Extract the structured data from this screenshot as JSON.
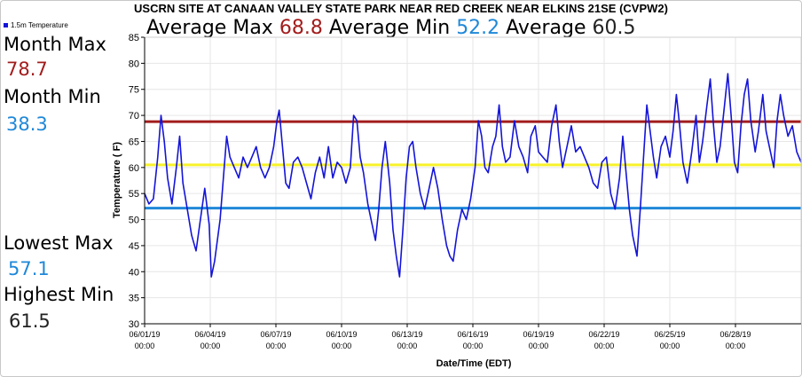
{
  "chart_data": {
    "type": "line",
    "title": "USCRN SITE AT CANAAN VALLEY STATE PARK NEAR RED CREEK NEAR ELKINS 21SE (CVPW2)",
    "xlabel": "Date/Time (EDT)",
    "ylabel": "Temperature ( F)",
    "ylim": [
      30,
      85
    ],
    "yticks": [
      30,
      35,
      40,
      45,
      50,
      55,
      60,
      65,
      70,
      75,
      80,
      85
    ],
    "xlim_days": [
      0,
      30
    ],
    "xtick_labels": [
      {
        "day": 0,
        "date": "06/01/19",
        "time": "00:00"
      },
      {
        "day": 3,
        "date": "06/04/19",
        "time": "00:00"
      },
      {
        "day": 6,
        "date": "06/07/19",
        "time": "00:00"
      },
      {
        "day": 9,
        "date": "06/10/19",
        "time": "00:00"
      },
      {
        "day": 12,
        "date": "06/13/19",
        "time": "00:00"
      },
      {
        "day": 15,
        "date": "06/16/19",
        "time": "00:00"
      },
      {
        "day": 18,
        "date": "06/19/19",
        "time": "00:00"
      },
      {
        "day": 21,
        "date": "06/22/19",
        "time": "00:00"
      },
      {
        "day": 24,
        "date": "06/25/19",
        "time": "00:00"
      },
      {
        "day": 27,
        "date": "06/28/19",
        "time": "00:00"
      }
    ],
    "grid": true,
    "legend_position": "top-left",
    "series": [
      {
        "name": "1.5m Temperature",
        "color": "#1414d8",
        "points": [
          [
            0.0,
            55
          ],
          [
            0.2,
            53
          ],
          [
            0.4,
            54
          ],
          [
            0.6,
            62
          ],
          [
            0.75,
            70
          ],
          [
            0.9,
            65
          ],
          [
            1.05,
            58
          ],
          [
            1.25,
            53
          ],
          [
            1.45,
            60
          ],
          [
            1.6,
            66
          ],
          [
            1.75,
            57
          ],
          [
            1.95,
            52
          ],
          [
            2.15,
            47
          ],
          [
            2.35,
            44
          ],
          [
            2.55,
            50
          ],
          [
            2.75,
            56
          ],
          [
            2.95,
            49
          ],
          [
            3.05,
            39
          ],
          [
            3.2,
            42
          ],
          [
            3.45,
            50
          ],
          [
            3.6,
            58
          ],
          [
            3.75,
            66
          ],
          [
            3.9,
            62
          ],
          [
            4.1,
            60
          ],
          [
            4.3,
            58
          ],
          [
            4.5,
            62
          ],
          [
            4.7,
            60
          ],
          [
            4.9,
            62
          ],
          [
            5.1,
            64
          ],
          [
            5.3,
            60
          ],
          [
            5.5,
            58
          ],
          [
            5.7,
            60
          ],
          [
            5.9,
            64
          ],
          [
            6.05,
            69
          ],
          [
            6.15,
            71
          ],
          [
            6.3,
            64
          ],
          [
            6.45,
            57
          ],
          [
            6.6,
            56
          ],
          [
            6.8,
            61
          ],
          [
            7.0,
            62
          ],
          [
            7.2,
            60
          ],
          [
            7.4,
            57
          ],
          [
            7.6,
            54
          ],
          [
            7.8,
            59
          ],
          [
            8.0,
            62
          ],
          [
            8.2,
            58
          ],
          [
            8.4,
            64
          ],
          [
            8.6,
            58
          ],
          [
            8.8,
            61
          ],
          [
            9.0,
            60
          ],
          [
            9.2,
            57
          ],
          [
            9.4,
            60
          ],
          [
            9.55,
            70
          ],
          [
            9.7,
            69
          ],
          [
            9.85,
            62
          ],
          [
            10.0,
            59
          ],
          [
            10.2,
            53
          ],
          [
            10.4,
            49
          ],
          [
            10.55,
            46
          ],
          [
            10.7,
            52
          ],
          [
            10.85,
            60
          ],
          [
            11.0,
            65
          ],
          [
            11.2,
            57
          ],
          [
            11.35,
            48
          ],
          [
            11.5,
            43
          ],
          [
            11.65,
            39
          ],
          [
            11.8,
            48
          ],
          [
            11.95,
            58
          ],
          [
            12.1,
            64
          ],
          [
            12.25,
            65
          ],
          [
            12.4,
            60
          ],
          [
            12.6,
            55
          ],
          [
            12.8,
            52
          ],
          [
            13.0,
            56
          ],
          [
            13.2,
            60
          ],
          [
            13.4,
            56
          ],
          [
            13.6,
            50
          ],
          [
            13.8,
            45
          ],
          [
            13.95,
            43
          ],
          [
            14.1,
            42
          ],
          [
            14.3,
            48
          ],
          [
            14.5,
            52
          ],
          [
            14.7,
            50
          ],
          [
            14.9,
            54
          ],
          [
            15.1,
            60
          ],
          [
            15.25,
            69
          ],
          [
            15.4,
            66
          ],
          [
            15.55,
            60
          ],
          [
            15.7,
            59
          ],
          [
            15.9,
            64
          ],
          [
            16.05,
            66
          ],
          [
            16.2,
            72
          ],
          [
            16.35,
            64
          ],
          [
            16.5,
            61
          ],
          [
            16.7,
            62
          ],
          [
            16.9,
            69
          ],
          [
            17.1,
            64
          ],
          [
            17.3,
            62
          ],
          [
            17.5,
            59
          ],
          [
            17.65,
            66
          ],
          [
            17.85,
            68
          ],
          [
            18.0,
            63
          ],
          [
            18.2,
            62
          ],
          [
            18.4,
            61
          ],
          [
            18.6,
            68
          ],
          [
            18.8,
            72
          ],
          [
            18.95,
            65
          ],
          [
            19.1,
            60
          ],
          [
            19.3,
            64
          ],
          [
            19.5,
            68
          ],
          [
            19.7,
            63
          ],
          [
            19.9,
            64
          ],
          [
            20.1,
            62
          ],
          [
            20.3,
            60
          ],
          [
            20.5,
            57
          ],
          [
            20.7,
            56
          ],
          [
            20.9,
            61
          ],
          [
            21.1,
            62
          ],
          [
            21.3,
            55
          ],
          [
            21.5,
            52
          ],
          [
            21.7,
            58
          ],
          [
            21.85,
            66
          ],
          [
            22.0,
            59
          ],
          [
            22.15,
            52
          ],
          [
            22.3,
            47
          ],
          [
            22.5,
            43
          ],
          [
            22.65,
            52
          ],
          [
            22.8,
            62
          ],
          [
            22.95,
            72
          ],
          [
            23.1,
            67
          ],
          [
            23.25,
            62
          ],
          [
            23.4,
            58
          ],
          [
            23.6,
            64
          ],
          [
            23.8,
            66
          ],
          [
            24.0,
            62
          ],
          [
            24.15,
            67
          ],
          [
            24.3,
            74
          ],
          [
            24.45,
            68
          ],
          [
            24.6,
            61
          ],
          [
            24.8,
            57
          ],
          [
            25.0,
            63
          ],
          [
            25.2,
            70
          ],
          [
            25.35,
            61
          ],
          [
            25.5,
            65
          ],
          [
            25.7,
            72
          ],
          [
            25.85,
            77
          ],
          [
            26.0,
            68
          ],
          [
            26.15,
            61
          ],
          [
            26.3,
            64
          ],
          [
            26.5,
            72
          ],
          [
            26.65,
            78
          ],
          [
            26.8,
            70
          ],
          [
            26.95,
            61
          ],
          [
            27.1,
            59
          ],
          [
            27.25,
            68
          ],
          [
            27.4,
            74
          ],
          [
            27.55,
            77
          ],
          [
            27.7,
            69
          ],
          [
            27.9,
            63
          ],
          [
            28.05,
            67
          ],
          [
            28.25,
            74
          ],
          [
            28.4,
            67
          ],
          [
            28.55,
            64
          ],
          [
            28.75,
            60
          ],
          [
            28.9,
            69
          ],
          [
            29.05,
            74
          ],
          [
            29.2,
            70
          ],
          [
            29.4,
            66
          ],
          [
            29.6,
            68
          ],
          [
            29.8,
            63
          ],
          [
            30.0,
            61
          ]
        ]
      },
      {
        "name": "Average Max",
        "color": "#a21c1c",
        "y": 68.8
      },
      {
        "name": "Average",
        "color": "#f7f22a",
        "y": 60.5
      },
      {
        "name": "Average Min",
        "color": "#1f88d8",
        "y": 52.2
      }
    ]
  },
  "stats": {
    "average_max_label": "Average Max",
    "average_max_value": "68.8",
    "average_min_label": "Average Min",
    "average_min_value": "52.2",
    "average_label": "Average",
    "average_value": "60.5",
    "month_max_label": "Month Max",
    "month_max_value": "78.7",
    "month_min_label": "Month Min",
    "month_min_value": "38.3",
    "lowest_max_label": "Lowest Max",
    "lowest_max_value": "57.1",
    "highest_min_label": "Highest Min",
    "highest_min_value": "61.5"
  },
  "colors": {
    "max_value": "#a21c1c",
    "min_value": "#1f88d8",
    "neutral_value": "#222222"
  }
}
